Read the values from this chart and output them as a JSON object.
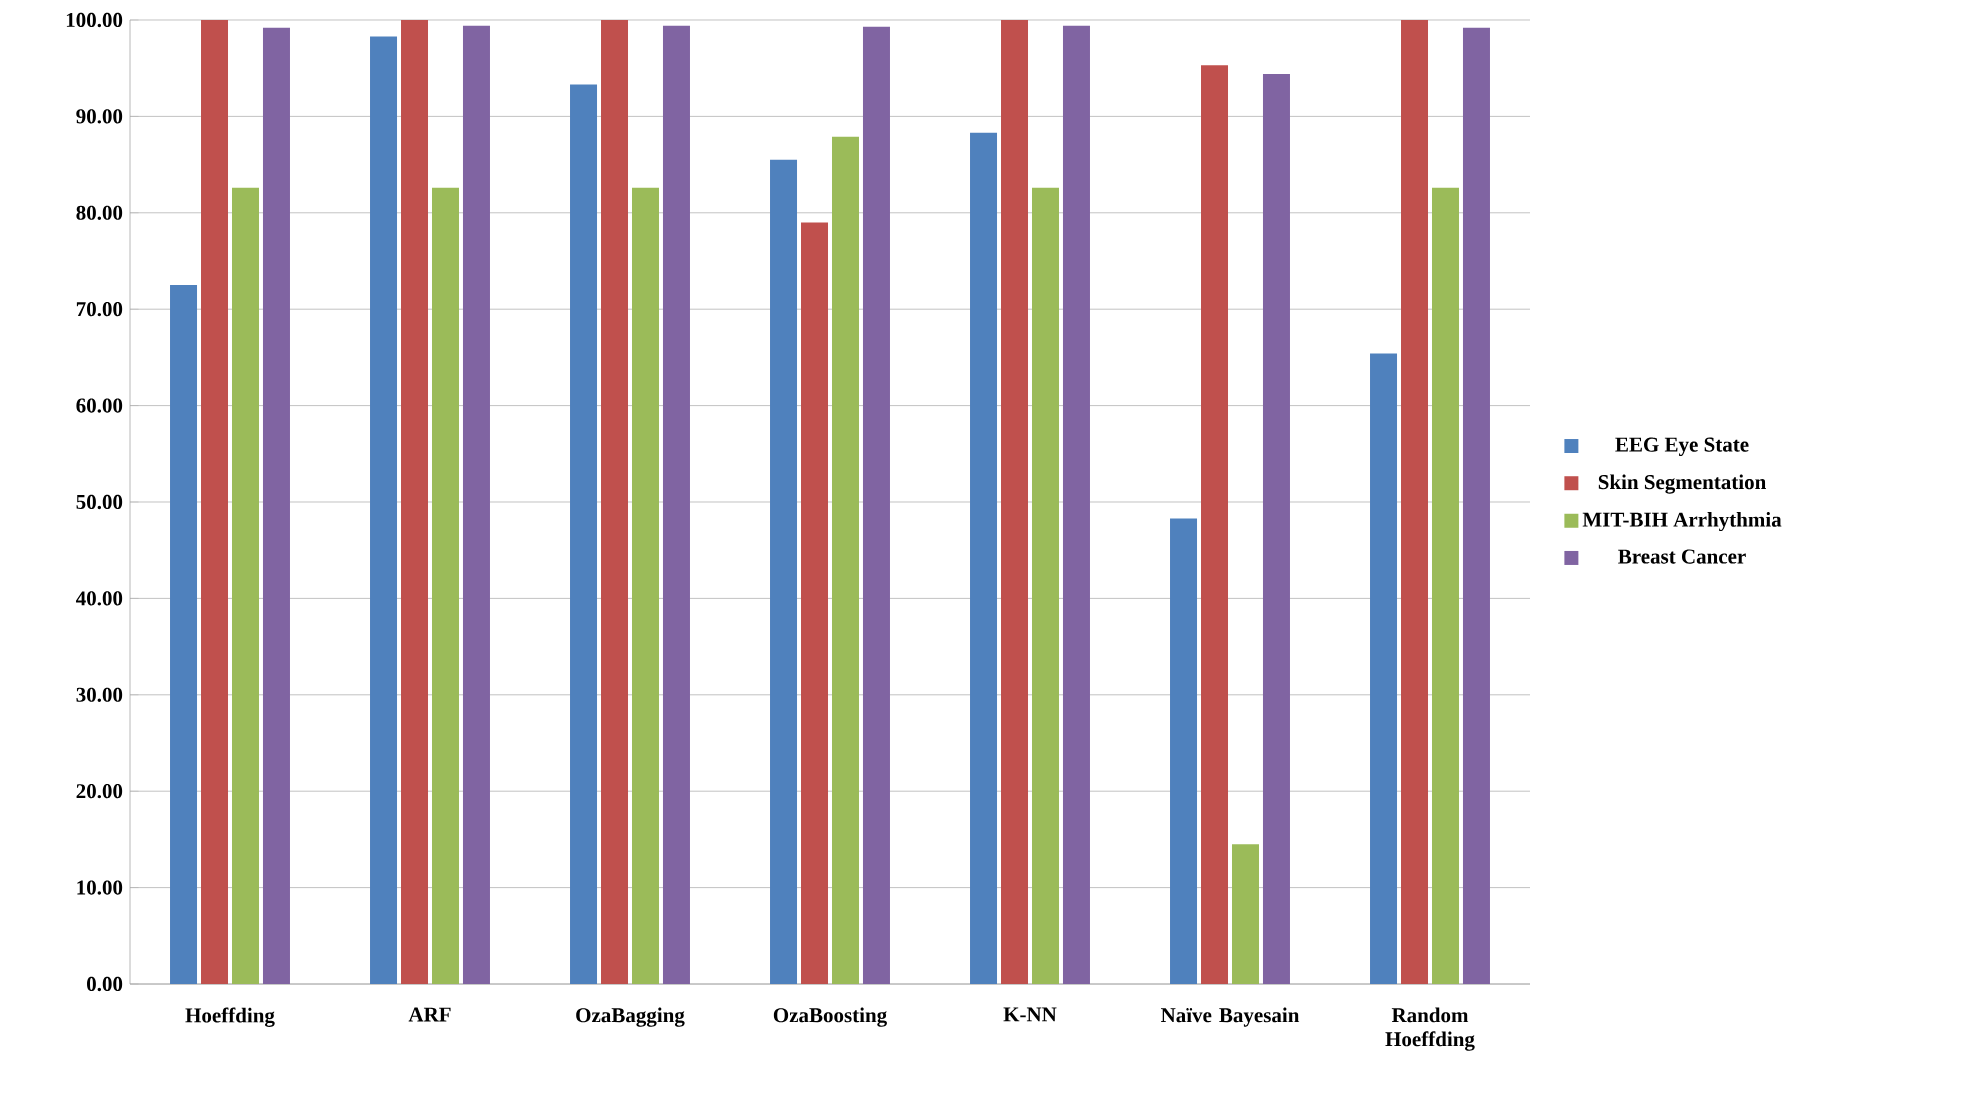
{
  "chart_data": {
    "type": "bar",
    "categories": [
      "Hoeffding",
      "ARF",
      "OzaBagging",
      "OzaBoosting",
      "K-NN",
      "Naïve Bayesain",
      "Random Hoeffding"
    ],
    "series": [
      {
        "name": "EEG Eye State",
        "color": "#4f81bd",
        "values": [
          72.5,
          98.3,
          93.3,
          85.5,
          88.3,
          48.3,
          65.4
        ]
      },
      {
        "name": "Skin Segmentation",
        "color": "#c0504d",
        "values": [
          100,
          100,
          100,
          79.0,
          100,
          95.3,
          100
        ]
      },
      {
        "name": "MIT-BIH Arrhythmia",
        "color": "#9bbb59",
        "values": [
          82.6,
          82.6,
          82.6,
          87.9,
          82.6,
          14.5,
          82.6
        ]
      },
      {
        "name": "Breast Cancer",
        "color": "#8064a2",
        "values": [
          99.2,
          99.4,
          99.4,
          99.3,
          99.4,
          94.4,
          99.2
        ]
      }
    ],
    "ylim": [
      0,
      100
    ],
    "yticks": [
      {
        "value": 0,
        "label": "0.00"
      },
      {
        "value": 10,
        "label": "10.00"
      },
      {
        "value": 20,
        "label": "20.00"
      },
      {
        "value": 30,
        "label": "30.00"
      },
      {
        "value": 40,
        "label": "40.00"
      },
      {
        "value": 50,
        "label": "50.00"
      },
      {
        "value": 60,
        "label": "60.00"
      },
      {
        "value": 70,
        "label": "70.00"
      },
      {
        "value": 80,
        "label": "80.00"
      },
      {
        "value": 90,
        "label": "90.00"
      },
      {
        "value": 100,
        "label": "100.00"
      }
    ],
    "grid": "y",
    "legend": "right"
  }
}
